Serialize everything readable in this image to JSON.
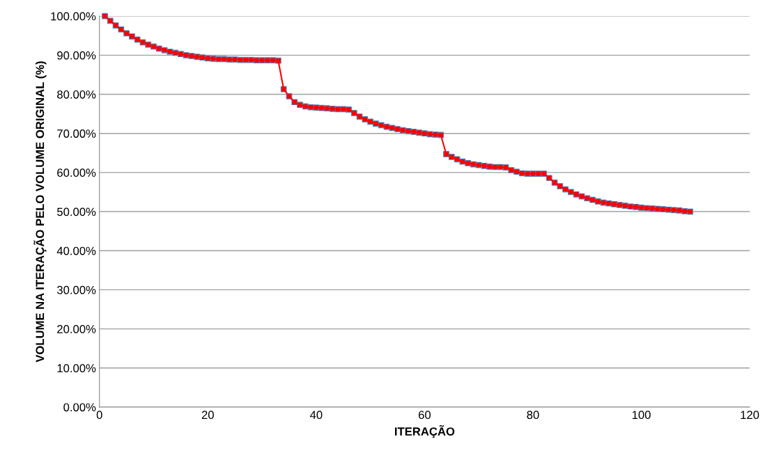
{
  "chart_data": {
    "type": "line",
    "xlabel": "ITERAÇÃO",
    "ylabel": "VOLUME NA ITERAÇÃO PELO VOLUME ORIGINAL (%)",
    "x": [
      1,
      2,
      3,
      4,
      5,
      6,
      7,
      8,
      9,
      10,
      11,
      12,
      13,
      14,
      15,
      16,
      17,
      18,
      19,
      20,
      21,
      22,
      23,
      24,
      25,
      26,
      27,
      28,
      29,
      30,
      31,
      32,
      33,
      34,
      35,
      36,
      37,
      38,
      39,
      40,
      41,
      42,
      43,
      44,
      45,
      46,
      47,
      48,
      49,
      50,
      51,
      52,
      53,
      54,
      55,
      56,
      57,
      58,
      59,
      60,
      61,
      62,
      63,
      64,
      65,
      66,
      67,
      68,
      69,
      70,
      71,
      72,
      73,
      74,
      75,
      76,
      77,
      78,
      79,
      80,
      81,
      82,
      83,
      84,
      85,
      86,
      87,
      88,
      89,
      90,
      91,
      92,
      93,
      94,
      95,
      96,
      97,
      98,
      99,
      100,
      101,
      102,
      103,
      104,
      105,
      106,
      107,
      108,
      109
    ],
    "series": [
      {
        "color": "#ff0000",
        "values": [
          100,
          98.8,
          97.6,
          96.6,
          95.6,
          94.8,
          94.0,
          93.3,
          92.7,
          92.2,
          91.7,
          91.3,
          90.9,
          90.6,
          90.3,
          90.0,
          89.8,
          89.6,
          89.4,
          89.2,
          89.1,
          89.0,
          89.0,
          88.9,
          88.9,
          88.8,
          88.8,
          88.8,
          88.7,
          88.7,
          88.7,
          88.7,
          88.6,
          81.3,
          79.5,
          78.0,
          77.3,
          76.9,
          76.7,
          76.6,
          76.5,
          76.4,
          76.3,
          76.2,
          76.2,
          76.1,
          75.2,
          74.3,
          73.6,
          73.0,
          72.5,
          72.1,
          71.7,
          71.4,
          71.1,
          70.8,
          70.6,
          70.4,
          70.2,
          70.0,
          69.8,
          69.7,
          69.6,
          64.7,
          64.0,
          63.4,
          62.8,
          62.4,
          62.1,
          61.9,
          61.7,
          61.5,
          61.4,
          61.4,
          61.3,
          60.6,
          60.2,
          59.8,
          59.7,
          59.7,
          59.7,
          59.7,
          58.6,
          57.4,
          56.5,
          55.7,
          55.0,
          54.4,
          53.9,
          53.4,
          53.0,
          52.6,
          52.3,
          52.1,
          51.9,
          51.7,
          51.5,
          51.3,
          51.2,
          51.0,
          50.9,
          50.8,
          50.7,
          50.6,
          50.5,
          50.4,
          50.3,
          50.1,
          50.0
        ]
      }
    ],
    "xlim": [
      0,
      120
    ],
    "xticks": [
      0,
      20,
      40,
      60,
      80,
      100,
      120
    ],
    "ylim": [
      0,
      100
    ],
    "yticks": [
      {
        "value": 0,
        "label": "0.00%"
      },
      {
        "value": 10,
        "label": "10.00%"
      },
      {
        "value": 20,
        "label": "20.00%"
      },
      {
        "value": 30,
        "label": "30.00%"
      },
      {
        "value": 40,
        "label": "40.00%"
      },
      {
        "value": 50,
        "label": "50.00%"
      },
      {
        "value": 60,
        "label": "60.00%"
      },
      {
        "value": 70,
        "label": "70.00%"
      },
      {
        "value": 80,
        "label": "80.00%"
      },
      {
        "value": 90,
        "label": "90.00%"
      },
      {
        "value": 100,
        "label": "100.00%"
      }
    ],
    "grid": "y",
    "marker": "square",
    "line_style": "solid"
  }
}
